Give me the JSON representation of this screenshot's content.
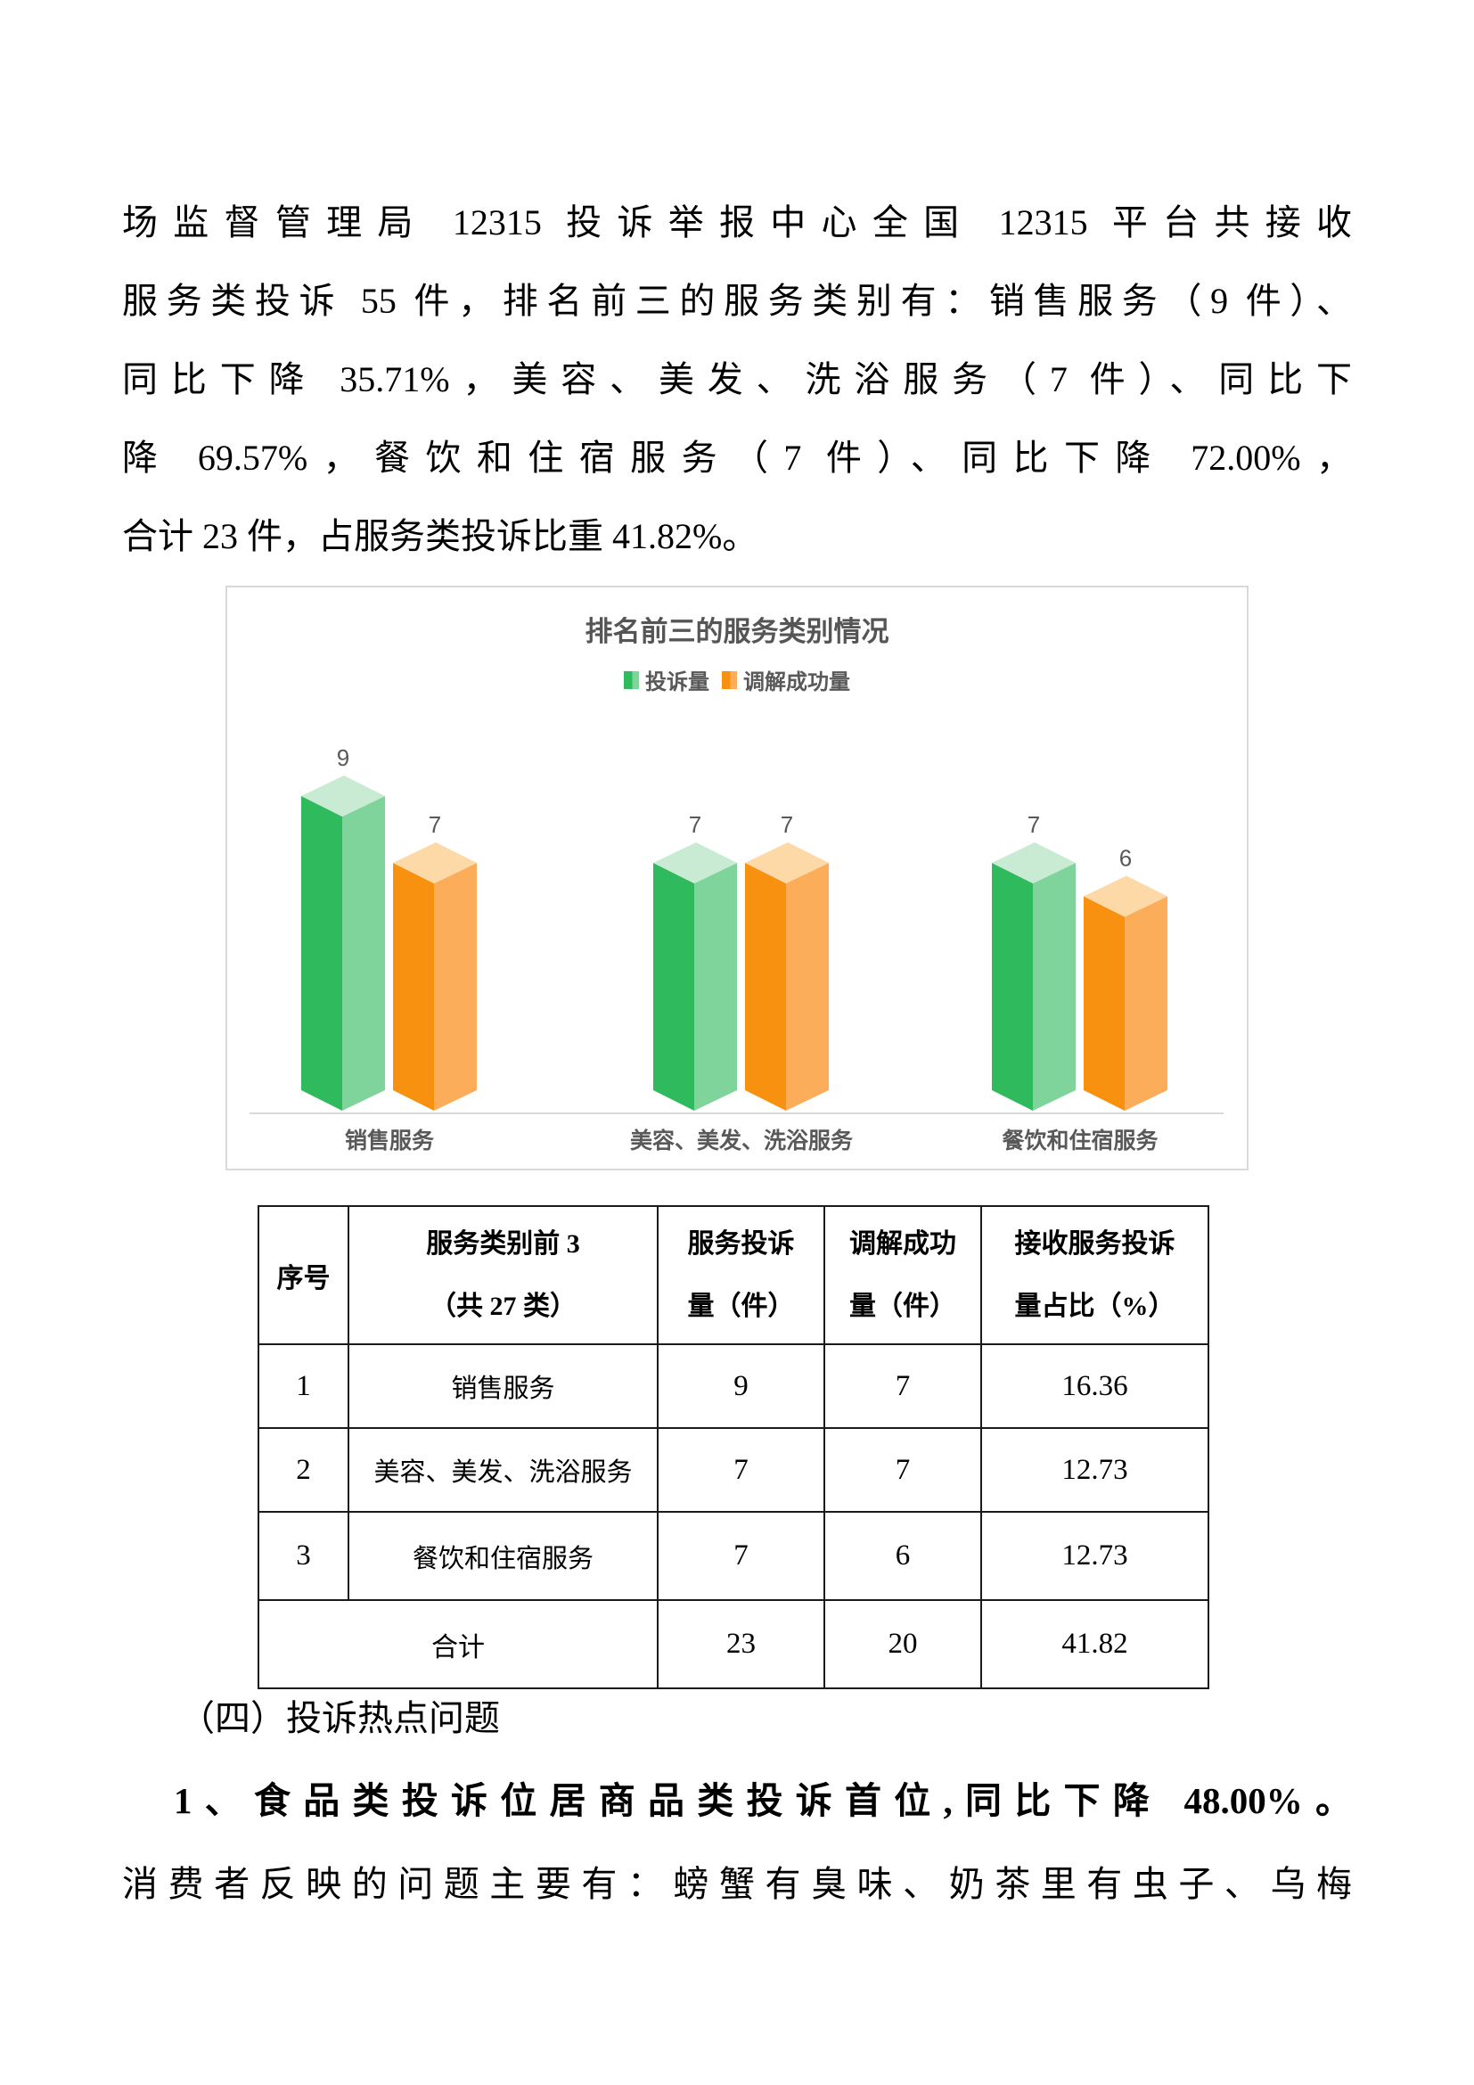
{
  "paragraph1": {
    "lines": [
      "场监督管理局 12315 投诉举报中心全国 12315 平台共接收",
      "服务类投诉 55 件，排名前三的服务类别有：销售服务（9 件）、",
      "同比下降 35.71%，美容、美发、洗浴服务（7 件）、同比下",
      "降 69.57%，餐饮和住宿服务（7 件）、同比下降 72.00%，",
      "合计 23 件，占服务类投诉比重 41.82%。"
    ]
  },
  "chart": {
    "title": "排名前三的服务类别情况",
    "legend": [
      {
        "label": "投诉量",
        "color": "#2FBA5D",
        "color_light": "#7FD49B"
      },
      {
        "label": "调解成功量",
        "color": "#F89110",
        "color_light": "#FBAD59"
      }
    ],
    "label_color": "#595959",
    "axis_color": "#d9d9d9",
    "border_color": "#d9d9d9"
  },
  "chart_data": {
    "type": "bar",
    "style": "3d-column",
    "title": "排名前三的服务类别情况",
    "categories": [
      "销售服务",
      "美容、美发、洗浴服务",
      "餐饮和住宿服务"
    ],
    "series": [
      {
        "name": "投诉量",
        "values": [
          9,
          7,
          7
        ],
        "colors": {
          "front": "#2FBA5D",
          "side": "#7FD49B",
          "top": "#C9EBD4"
        }
      },
      {
        "name": "调解成功量",
        "values": [
          7,
          7,
          6
        ],
        "colors": {
          "front": "#F89110",
          "side": "#FBAD59",
          "top": "#FDD9A8"
        }
      }
    ],
    "value_labels": [
      [
        "9",
        "7"
      ],
      [
        "7",
        "7"
      ],
      [
        "7",
        "6"
      ]
    ],
    "xlabel": "",
    "ylabel": "",
    "ylim": [
      0,
      10
    ],
    "grid": false,
    "legend_position": "top"
  },
  "table": {
    "header": {
      "c1": "序号",
      "c2": [
        "服务类别前 3",
        "（共 27 类）"
      ],
      "c3": [
        "服务投诉",
        "量（件）"
      ],
      "c4": [
        "调解成功",
        "量（件）"
      ],
      "c5": [
        "接收服务投诉",
        "量占比（%）"
      ]
    },
    "rows": [
      [
        "1",
        "销售服务",
        "9",
        "7",
        "16.36"
      ],
      [
        "2",
        "美容、美发、洗浴服务",
        "7",
        "7",
        "12.73"
      ],
      [
        "3",
        "餐饮和住宿服务",
        "7",
        "6",
        "12.73"
      ]
    ],
    "total": [
      "合计",
      "23",
      "20",
      "41.82"
    ]
  },
  "section": {
    "heading": "（四）投诉热点问题",
    "emphasis": "1、食品类投诉位居商品类投诉首位,同比下降 48.00%。",
    "body": "消费者反映的问题主要有：螃蟹有臭味、奶茶里有虫子、乌梅"
  }
}
